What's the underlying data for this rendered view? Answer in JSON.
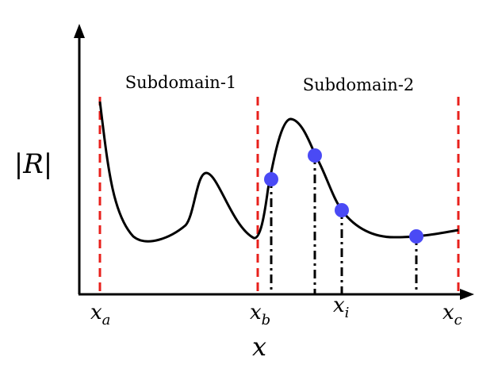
{
  "labels": {
    "subdomain1": "Subdomain-1",
    "subdomain2": "Subdomain-2",
    "y_axis": "|R|",
    "x_axis": "x",
    "x_a_main": "x",
    "x_a_sub": "a",
    "x_b_main": "x",
    "x_b_sub": "b",
    "x_i_main": "x",
    "x_i_sub": "i",
    "x_c_main": "x",
    "x_c_sub": "c"
  },
  "colors": {
    "boundary_lines": "#e8211c",
    "sample_points": "#4a4af5",
    "curve": "#000000",
    "axes": "#000000"
  }
}
